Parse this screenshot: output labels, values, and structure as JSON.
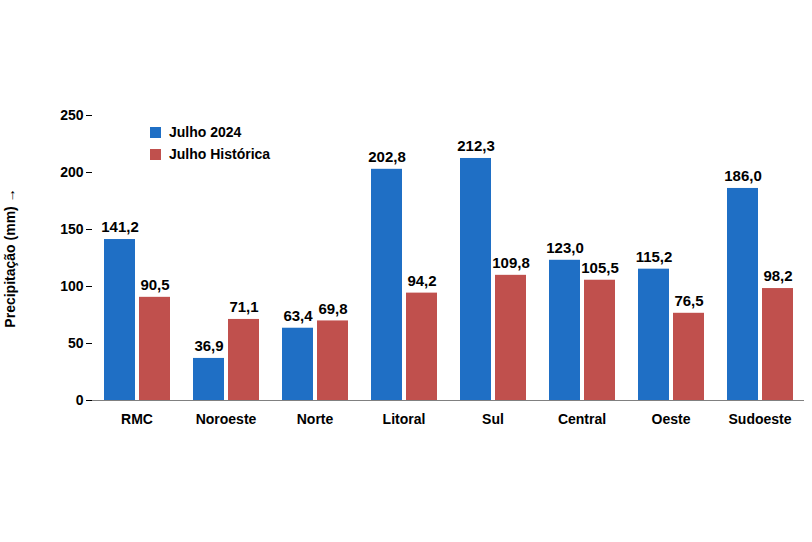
{
  "chart_data": {
    "type": "bar",
    "y_label": "Precipitação (mm)",
    "categories": [
      "RMC",
      "Noroeste",
      "Norte",
      "Litoral",
      "Sul",
      "Central",
      "Oeste",
      "Sudoeste"
    ],
    "series": [
      {
        "name": "Julho 2024",
        "color": "#1f6fc5",
        "values": [
          141.2,
          36.9,
          63.4,
          202.8,
          212.3,
          123.0,
          115.2,
          186.0
        ],
        "value_labels": [
          "141,2",
          "36,9",
          "63,4",
          "202,8",
          "212,3",
          "123,0",
          "115,2",
          "186,0"
        ]
      },
      {
        "name": "Julho Histórica",
        "color": "#c0504d",
        "values": [
          90.5,
          71.1,
          69.8,
          94.2,
          109.8,
          105.5,
          76.5,
          98.2
        ],
        "value_labels": [
          "90,5",
          "71,1",
          "69,8",
          "94,2",
          "109,8",
          "105,5",
          "76,5",
          "98,2"
        ]
      }
    ],
    "ylim": [
      0,
      250
    ],
    "yticks": [
      0,
      50,
      100,
      150,
      200,
      250
    ],
    "grid": false,
    "legend": "top-left",
    "data_labels": true
  }
}
